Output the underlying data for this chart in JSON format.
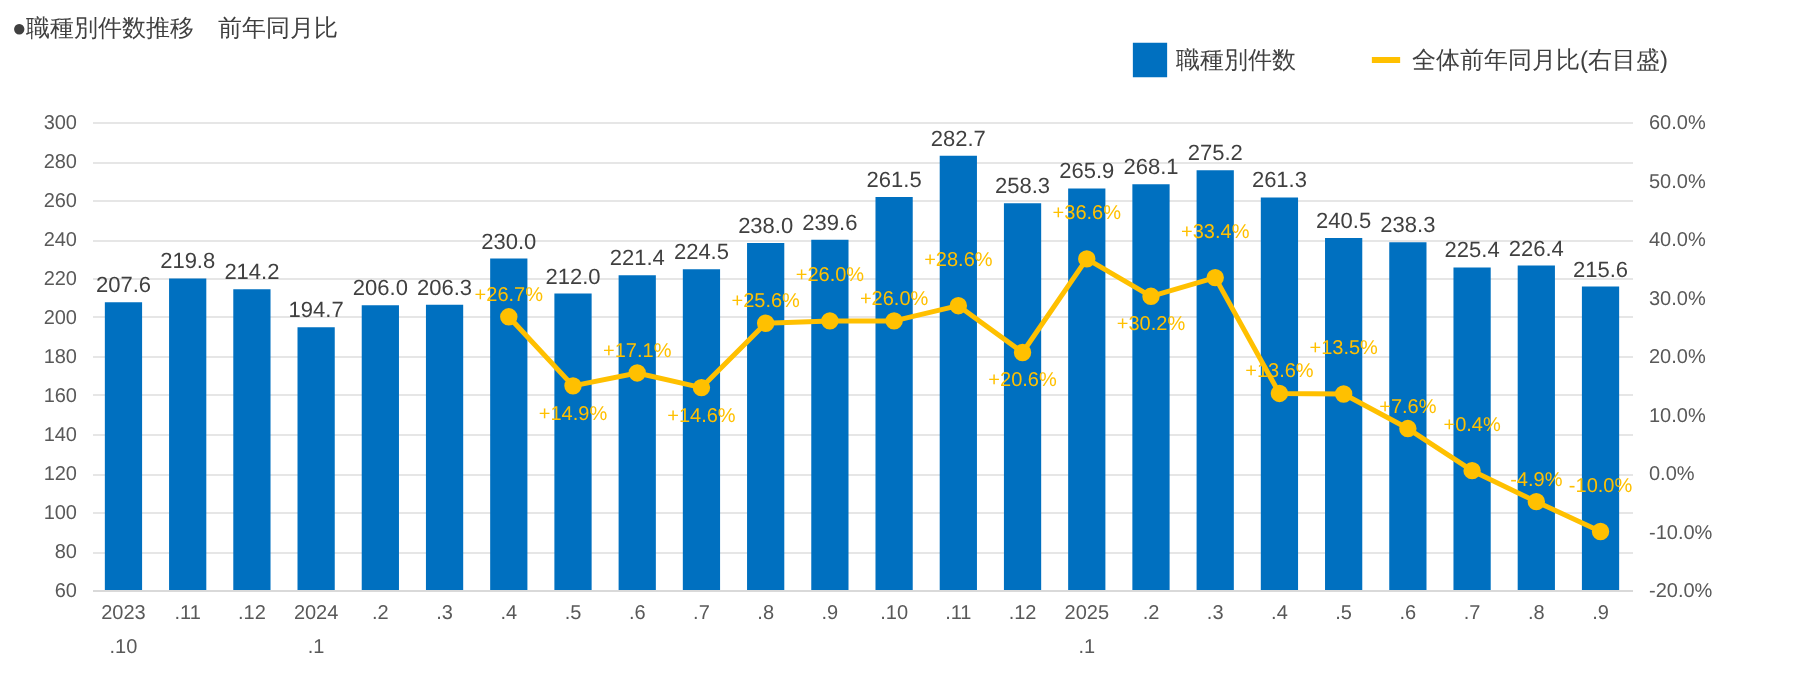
{
  "chart_data": {
    "type": "bar",
    "title": "●職種別件数推移　前年同月比",
    "categories": [
      "2023\n.10",
      ".11",
      ".12",
      "2024\n.1",
      ".2",
      ".3",
      ".4",
      ".5",
      ".6",
      ".7",
      ".8",
      ".9",
      ".10",
      ".11",
      ".12",
      "2025\n.1",
      ".2",
      ".3",
      ".4",
      ".5",
      ".6",
      ".7",
      ".8",
      ".9"
    ],
    "series": [
      {
        "name": "職種別件数",
        "color": "#0070c0",
        "values": [
          207.6,
          219.8,
          214.2,
          194.7,
          206.0,
          206.3,
          230.0,
          212.0,
          221.4,
          224.5,
          238.0,
          239.6,
          261.5,
          282.7,
          258.3,
          265.9,
          268.1,
          275.2,
          261.3,
          240.5,
          238.3,
          225.4,
          226.4,
          215.6
        ],
        "value_labels": [
          "207.6",
          "219.8",
          "214.2",
          "194.7",
          "206.0",
          "206.3",
          "230.0",
          "212.0",
          "221.4",
          "224.5",
          "238.0",
          "239.6",
          "261.5",
          "282.7",
          "258.3",
          "265.9",
          "268.1",
          "275.2",
          "261.3",
          "240.5",
          "238.3",
          "225.4",
          "226.4",
          "215.6"
        ]
      },
      {
        "name": "全体前年同月比(右目盛)",
        "type": "line",
        "axis": "y2",
        "color": "#ffc000",
        "marker": "circle",
        "values": [
          null,
          null,
          null,
          null,
          null,
          null,
          26.7,
          14.9,
          17.1,
          14.6,
          25.6,
          26.0,
          26.0,
          28.6,
          20.6,
          36.6,
          30.2,
          33.4,
          13.6,
          13.5,
          7.6,
          0.4,
          -4.9,
          -10.0
        ],
        "value_labels": [
          null,
          null,
          null,
          null,
          null,
          null,
          "+26.7%",
          "+14.9%",
          "+17.1%",
          "+14.6%",
          "+25.6%",
          "+26.0%",
          "+26.0%",
          "+28.6%",
          "+20.6%",
          "+36.6%",
          "+30.2%",
          "+33.4%",
          "+13.6%",
          "+13.5%",
          "+7.6%",
          "+0.4%",
          "-4.9%",
          "-10.0%"
        ]
      }
    ],
    "ylim": [
      60,
      300
    ],
    "yticks": [
      60,
      80,
      100,
      120,
      140,
      160,
      180,
      200,
      220,
      240,
      260,
      280,
      300
    ],
    "y2lim": [
      -20,
      60
    ],
    "y2ticks": [
      {
        "value": -20,
        "label": "-20.0%"
      },
      {
        "value": -10,
        "label": "-10.0%"
      },
      {
        "value": 0,
        "label": "0.0%"
      },
      {
        "value": 10,
        "label": "10.0%"
      },
      {
        "value": 20,
        "label": "20.0%"
      },
      {
        "value": 30,
        "label": "30.0%"
      },
      {
        "value": 40,
        "label": "40.0%"
      },
      {
        "value": 50,
        "label": "50.0%"
      },
      {
        "value": 60,
        "label": "60.0%"
      }
    ],
    "grid": "y",
    "legend": "top right"
  }
}
